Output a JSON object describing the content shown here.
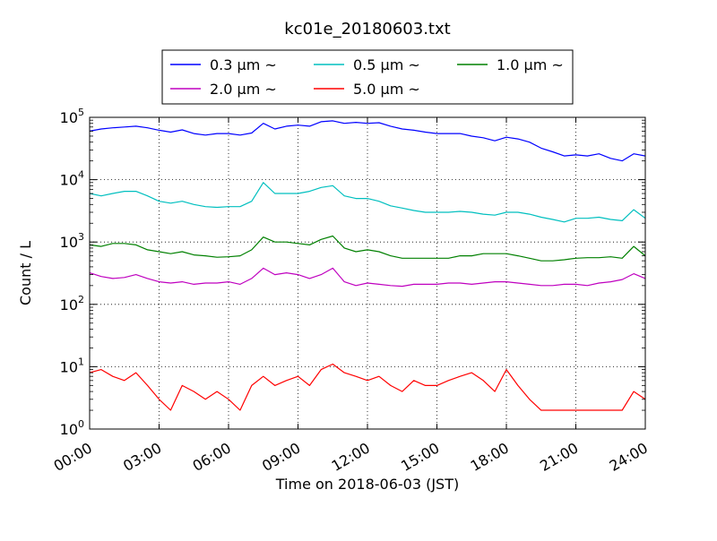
{
  "chart_data": {
    "type": "line",
    "title": "kc01e_20180603.txt",
    "xlabel": "Time on 2018-06-03 (JST)",
    "ylabel": "Count / L",
    "yscale": "log",
    "ylim": [
      1,
      100000
    ],
    "xlim": [
      "00:00",
      "24:00"
    ],
    "grid": true,
    "legend_position": "top-center, above plot",
    "x_ticks": [
      "00:00",
      "03:00",
      "06:00",
      "09:00",
      "12:00",
      "15:00",
      "18:00",
      "21:00",
      "24:00"
    ],
    "y_ticks": [
      {
        "base": "10",
        "exp": "0"
      },
      {
        "base": "10",
        "exp": "1"
      },
      {
        "base": "10",
        "exp": "2"
      },
      {
        "base": "10",
        "exp": "3"
      },
      {
        "base": "10",
        "exp": "4"
      },
      {
        "base": "10",
        "exp": "5"
      }
    ],
    "legend": [
      {
        "label": "0.3 μm ~",
        "color": "#0000ff"
      },
      {
        "label": "0.5 μm ~",
        "color": "#00bfbf"
      },
      {
        "label": "1.0 μm ~",
        "color": "#008000"
      },
      {
        "label": "2.0 μm ~",
        "color": "#bf00bf"
      },
      {
        "label": "5.0 μm ~",
        "color": "#ff0000"
      }
    ],
    "x_hours": [
      0,
      0.5,
      1,
      1.5,
      2,
      2.5,
      3,
      3.5,
      4,
      4.5,
      5,
      5.5,
      6,
      6.5,
      7,
      7.5,
      8,
      8.5,
      9,
      9.5,
      10,
      10.5,
      11,
      11.5,
      12,
      12.5,
      13,
      13.5,
      14,
      14.5,
      15,
      15.5,
      16,
      16.5,
      17,
      17.5,
      18,
      18.5,
      19,
      19.5,
      20,
      20.5,
      21,
      21.5,
      22,
      22.5,
      23,
      23.5,
      24
    ],
    "series": [
      {
        "name": "0.3 μm ~",
        "color": "#0000ff",
        "values": [
          60000,
          65000,
          68000,
          70000,
          72000,
          68000,
          62000,
          58000,
          63000,
          55000,
          52000,
          55000,
          55000,
          52000,
          56000,
          80000,
          65000,
          72000,
          75000,
          72000,
          85000,
          88000,
          80000,
          83000,
          80000,
          82000,
          72000,
          65000,
          62000,
          58000,
          55000,
          55000,
          55000,
          50000,
          47000,
          42000,
          48000,
          45000,
          40000,
          32000,
          28000,
          24000,
          25000,
          24000,
          26000,
          22000,
          20000,
          26000,
          24000
        ]
      },
      {
        "name": "0.5 μm ~",
        "color": "#00bfbf",
        "values": [
          6000,
          5500,
          6000,
          6500,
          6500,
          5500,
          4500,
          4200,
          4500,
          4000,
          3700,
          3600,
          3700,
          3700,
          4500,
          9000,
          6000,
          6000,
          6000,
          6500,
          7500,
          8000,
          5500,
          5000,
          5000,
          4500,
          3800,
          3500,
          3200,
          3000,
          3000,
          3000,
          3100,
          3000,
          2800,
          2700,
          3000,
          3000,
          2800,
          2500,
          2300,
          2100,
          2400,
          2400,
          2500,
          2300,
          2200,
          3300,
          2400
        ]
      },
      {
        "name": "1.0 μm ~",
        "color": "#008000",
        "values": [
          900,
          850,
          950,
          950,
          900,
          750,
          700,
          650,
          700,
          620,
          600,
          570,
          580,
          600,
          750,
          1200,
          1000,
          1000,
          950,
          900,
          1100,
          1250,
          800,
          700,
          750,
          700,
          600,
          550,
          550,
          550,
          550,
          550,
          600,
          600,
          650,
          650,
          650,
          600,
          550,
          500,
          500,
          520,
          550,
          560,
          560,
          580,
          550,
          850,
          600
        ]
      },
      {
        "name": "2.0 μm ~",
        "color": "#bf00bf",
        "values": [
          320,
          280,
          260,
          270,
          300,
          260,
          230,
          220,
          230,
          210,
          220,
          220,
          230,
          210,
          260,
          380,
          300,
          320,
          300,
          260,
          300,
          380,
          230,
          200,
          220,
          210,
          200,
          195,
          210,
          210,
          210,
          220,
          220,
          210,
          220,
          230,
          230,
          220,
          210,
          200,
          200,
          210,
          210,
          200,
          220,
          230,
          250,
          310,
          260
        ]
      },
      {
        "name": "5.0 μm ~",
        "color": "#ff0000",
        "values": [
          8,
          9,
          7,
          6,
          8,
          5,
          3,
          2,
          5,
          4,
          3,
          4,
          3,
          2,
          5,
          7,
          5,
          6,
          7,
          5,
          9,
          11,
          8,
          7,
          6,
          7,
          5,
          4,
          6,
          5,
          5,
          6,
          7,
          8,
          6,
          4,
          9,
          5,
          3,
          2,
          2,
          2,
          2,
          2,
          2,
          2,
          2,
          4,
          3
        ]
      }
    ]
  }
}
